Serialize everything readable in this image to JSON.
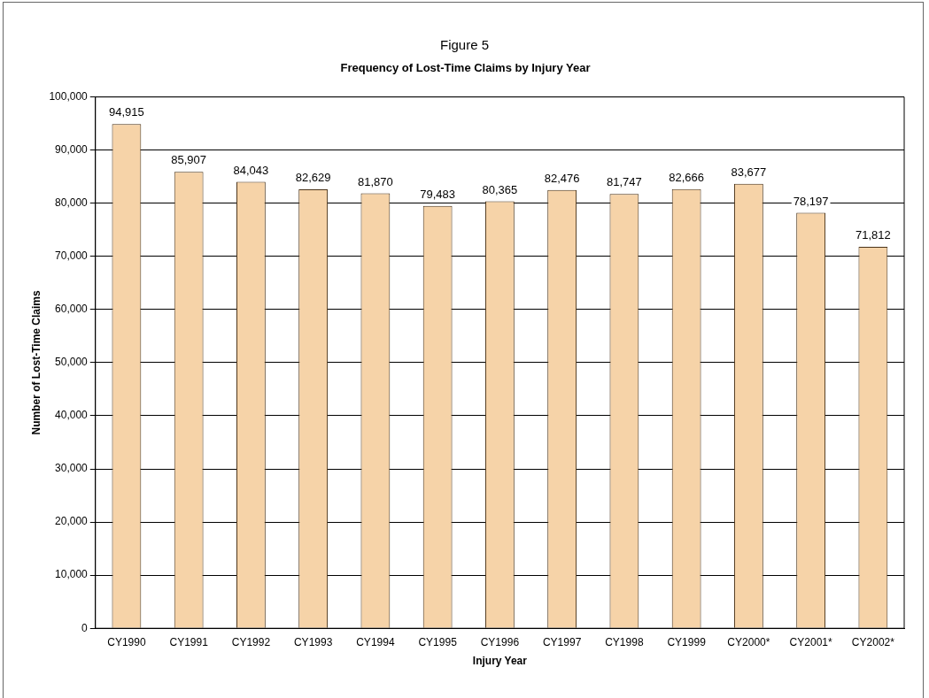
{
  "chart_data": {
    "type": "bar",
    "title": "Frequency of Lost-Time Claims by Injury Year",
    "xlabel": "Injury Year",
    "ylabel": "Number of Lost-Time Claims",
    "annotations": [
      "Figure 5"
    ],
    "categories": [
      "CY1990",
      "CY1991",
      "CY1992",
      "CY1993",
      "CY1994",
      "CY1995",
      "CY1996",
      "CY1997",
      "CY1998",
      "CY1999",
      "CY2000*",
      "CY2001*",
      "CY2002*"
    ],
    "values": [
      94915,
      85907,
      84043,
      82629,
      81870,
      79483,
      80365,
      82476,
      81747,
      82666,
      83677,
      78197,
      71812
    ],
    "color": "#f6d3a8",
    "value_labels": [
      "94,915",
      "85,907",
      "84,043",
      "82,629",
      "81,870",
      "79,483",
      "80,365",
      "82,476",
      "81,747",
      "82,666",
      "83,677",
      "78,197",
      "71,812"
    ],
    "ylim": [
      0,
      100000
    ],
    "yticks": [
      0,
      {
        "value": 10000,
        "label": "10,000"
      },
      {
        "value": 20000,
        "label": "20,000"
      },
      {
        "value": 30000,
        "label": "30,000"
      },
      {
        "value": 40000,
        "label": "40,000"
      },
      {
        "value": 50000,
        "label": "50,000"
      },
      {
        "value": 60000,
        "label": "60,000"
      },
      {
        "value": 70000,
        "label": "70,000"
      },
      {
        "value": 80000,
        "label": "80,000"
      },
      {
        "value": 90000,
        "label": "90,000"
      },
      {
        "value": 100000,
        "label": "100,000"
      }
    ],
    "grid": "y",
    "legend": false
  }
}
